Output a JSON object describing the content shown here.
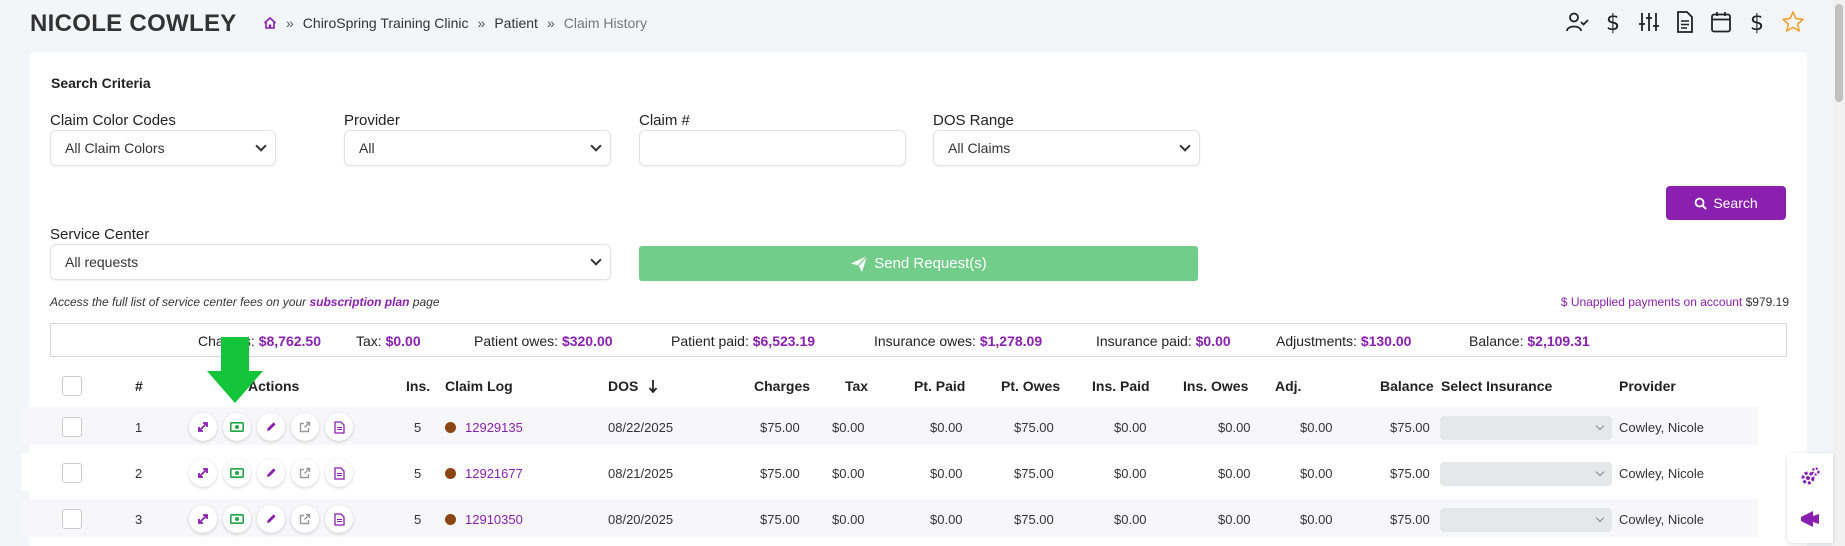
{
  "header": {
    "patient_name": "NICOLE COWLEY",
    "breadcrumb": [
      "ChiroSpring Training Clinic",
      "Patient",
      "Claim History"
    ],
    "breadcrumb_sep": "»",
    "icons": [
      "user-check-icon",
      "dollar-icon",
      "sliders-icon",
      "document-icon",
      "calendar-icon",
      "dollar-icon",
      "star-icon"
    ]
  },
  "search": {
    "title": "Search Criteria",
    "claim_color_label": "Claim Color Codes",
    "claim_color_value": "All Claim Colors",
    "provider_label": "Provider",
    "provider_value": "All",
    "claim_num_label": "Claim #",
    "claim_num_value": "",
    "dos_label": "DOS Range",
    "dos_value": "All Claims",
    "search_button": "Search",
    "service_center_label": "Service Center",
    "service_center_value": "All requests",
    "send_button": "Send Request(s)",
    "note_prefix": "Access the full list of service center fees on your ",
    "note_link": "subscription plan",
    "note_suffix": " page",
    "unapplied_label": "$ Unapplied payments on account",
    "unapplied_amount": "$979.19"
  },
  "totals": [
    {
      "label": "Charges:",
      "value": "$8,762.50"
    },
    {
      "label": "Tax:",
      "value": "$0.00"
    },
    {
      "label": "Patient owes:",
      "value": "$320.00"
    },
    {
      "label": "Patient paid:",
      "value": "$6,523.19"
    },
    {
      "label": "Insurance owes:",
      "value": "$1,278.09"
    },
    {
      "label": "Insurance paid:",
      "value": "$0.00"
    },
    {
      "label": "Adjustments:",
      "value": "$130.00"
    },
    {
      "label": "Balance:",
      "value": "$2,109.31"
    }
  ],
  "table": {
    "headers": {
      "num": "#",
      "actions": "Actions",
      "ins": "Ins.",
      "claim_log": "Claim Log",
      "dos": "DOS",
      "charges": "Charges",
      "tax": "Tax",
      "pt_paid": "Pt. Paid",
      "pt_owes": "Pt. Owes",
      "ins_paid": "Ins. Paid",
      "ins_owes": "Ins. Owes",
      "adj": "Adj.",
      "balance": "Balance",
      "select_insurance": "Select Insurance",
      "provider": "Provider"
    },
    "rows": [
      {
        "num": "1",
        "ins": "5",
        "claim": "12929135",
        "dos": "08/22/2025",
        "charges": "$75.00",
        "tax": "$0.00",
        "pt_paid": "$0.00",
        "pt_owes": "$75.00",
        "ins_paid": "$0.00",
        "ins_owes": "$0.00",
        "adj": "$0.00",
        "balance": "$75.00",
        "provider": "Cowley, Nicole"
      },
      {
        "num": "2",
        "ins": "5",
        "claim": "12921677",
        "dos": "08/21/2025",
        "charges": "$75.00",
        "tax": "$0.00",
        "pt_paid": "$0.00",
        "pt_owes": "$75.00",
        "ins_paid": "$0.00",
        "ins_owes": "$0.00",
        "adj": "$0.00",
        "balance": "$75.00",
        "provider": "Cowley, Nicole"
      },
      {
        "num": "3",
        "ins": "5",
        "claim": "12910350",
        "dos": "08/20/2025",
        "charges": "$75.00",
        "tax": "$0.00",
        "pt_paid": "$0.00",
        "pt_owes": "$75.00",
        "ins_paid": "$0.00",
        "ins_owes": "$0.00",
        "adj": "$0.00",
        "balance": "$75.00",
        "provider": "Cowley, Nicole"
      }
    ]
  },
  "colors": {
    "accent": "#8a1fb0",
    "send_button": "#72cd8b",
    "claim_dot": "#8b4513",
    "arrow": "#14c43a",
    "star": "#f0a030",
    "money_icon": "#22a648"
  }
}
